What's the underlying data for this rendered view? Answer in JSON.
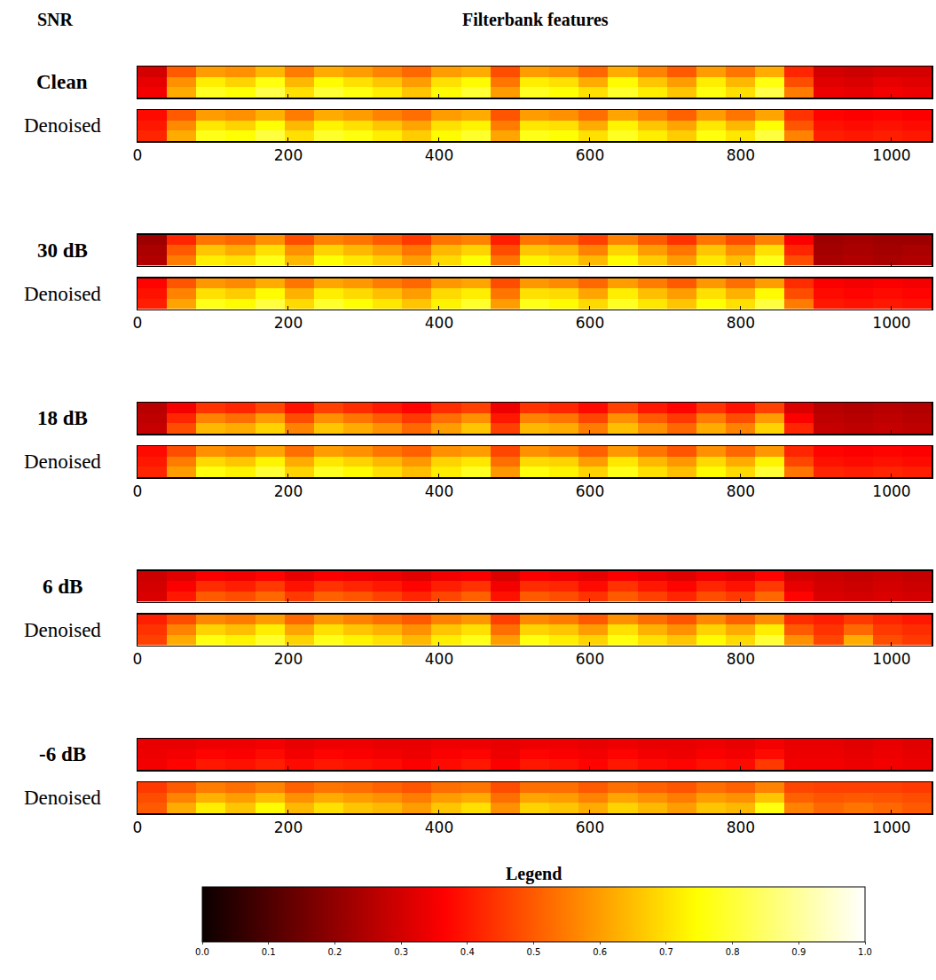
{
  "chart_data": {
    "type": "heatmap",
    "title": "Filterbank features",
    "row_label_title": "SNR",
    "tick_labels": "x",
    "x": [
      0,
      39,
      78,
      117,
      156,
      195,
      234,
      273,
      312,
      351,
      390,
      429,
      468,
      507,
      546,
      585,
      624,
      663,
      702,
      741,
      780,
      819,
      858,
      897,
      936,
      975,
      1014,
      1053
    ],
    "xlim": [
      0,
      1053
    ],
    "xticks": [
      0,
      200,
      400,
      600,
      800,
      1000
    ],
    "colorbar": {
      "title": "Legend",
      "range": [
        0,
        1
      ],
      "ticks": [
        {
          "value": 0,
          "label": "0.0"
        },
        {
          "value": 0.1,
          "label": "0.1"
        },
        {
          "value": 0.2,
          "label": "0.2"
        },
        {
          "value": 0.3,
          "label": "0.3"
        },
        {
          "value": 0.4,
          "label": "0.4"
        },
        {
          "value": 0.5,
          "label": "0.5"
        },
        {
          "value": 0.6,
          "label": "0.6"
        },
        {
          "value": 0.7,
          "label": "0.7"
        },
        {
          "value": 0.8,
          "label": "0.8"
        },
        {
          "value": 0.9,
          "label": "0.9"
        },
        {
          "value": 1,
          "label": "1.0"
        }
      ]
    },
    "panels": [
      {
        "label": "Clean",
        "cells": [
          [
            0.35,
            0.62,
            0.78,
            0.75,
            0.82,
            0.7,
            0.8,
            0.76,
            0.72,
            0.66,
            0.74,
            0.8,
            0.6,
            0.78,
            0.75,
            0.7,
            0.79,
            0.72,
            0.66,
            0.76,
            0.7,
            0.82,
            0.55,
            0.34,
            0.33,
            0.35,
            0.34
          ],
          [
            0.33,
            0.58,
            0.72,
            0.68,
            0.76,
            0.64,
            0.74,
            0.7,
            0.66,
            0.6,
            0.7,
            0.74,
            0.54,
            0.72,
            0.7,
            0.62,
            0.74,
            0.66,
            0.6,
            0.72,
            0.64,
            0.76,
            0.48,
            0.32,
            0.31,
            0.33,
            0.32
          ],
          [
            0.3,
            0.5,
            0.6,
            0.58,
            0.64,
            0.55,
            0.62,
            0.6,
            0.56,
            0.52,
            0.6,
            0.62,
            0.48,
            0.6,
            0.58,
            0.52,
            0.62,
            0.56,
            0.5,
            0.6,
            0.54,
            0.62,
            0.42,
            0.3,
            0.29,
            0.3,
            0.3
          ]
        ]
      },
      {
        "label": "Denoised",
        "cells": [
          [
            0.42,
            0.62,
            0.77,
            0.75,
            0.81,
            0.7,
            0.79,
            0.76,
            0.72,
            0.67,
            0.74,
            0.79,
            0.61,
            0.77,
            0.75,
            0.7,
            0.78,
            0.72,
            0.67,
            0.76,
            0.71,
            0.81,
            0.56,
            0.41,
            0.4,
            0.41,
            0.4
          ],
          [
            0.4,
            0.57,
            0.71,
            0.68,
            0.75,
            0.64,
            0.73,
            0.7,
            0.66,
            0.61,
            0.7,
            0.73,
            0.55,
            0.71,
            0.7,
            0.62,
            0.73,
            0.66,
            0.61,
            0.71,
            0.64,
            0.75,
            0.49,
            0.39,
            0.38,
            0.39,
            0.38
          ],
          [
            0.38,
            0.5,
            0.6,
            0.58,
            0.63,
            0.55,
            0.62,
            0.6,
            0.56,
            0.53,
            0.6,
            0.62,
            0.49,
            0.6,
            0.58,
            0.53,
            0.61,
            0.56,
            0.51,
            0.6,
            0.54,
            0.61,
            0.44,
            0.37,
            0.36,
            0.37,
            0.36
          ]
        ]
      },
      {
        "label": "30 dB",
        "cells": [
          [
            0.25,
            0.55,
            0.72,
            0.7,
            0.77,
            0.64,
            0.75,
            0.71,
            0.67,
            0.6,
            0.69,
            0.75,
            0.54,
            0.73,
            0.7,
            0.64,
            0.74,
            0.67,
            0.6,
            0.71,
            0.65,
            0.77,
            0.48,
            0.24,
            0.25,
            0.24,
            0.25
          ],
          [
            0.24,
            0.5,
            0.66,
            0.62,
            0.7,
            0.58,
            0.68,
            0.64,
            0.6,
            0.54,
            0.64,
            0.68,
            0.48,
            0.66,
            0.64,
            0.56,
            0.68,
            0.6,
            0.54,
            0.66,
            0.58,
            0.7,
            0.42,
            0.23,
            0.24,
            0.23,
            0.24
          ],
          [
            0.22,
            0.42,
            0.54,
            0.52,
            0.58,
            0.48,
            0.56,
            0.54,
            0.5,
            0.45,
            0.54,
            0.56,
            0.41,
            0.54,
            0.52,
            0.46,
            0.56,
            0.5,
            0.44,
            0.54,
            0.48,
            0.56,
            0.36,
            0.22,
            0.23,
            0.22,
            0.22
          ]
        ]
      },
      {
        "label": "Denoised",
        "cells": [
          [
            0.41,
            0.61,
            0.77,
            0.74,
            0.81,
            0.69,
            0.79,
            0.75,
            0.71,
            0.66,
            0.73,
            0.79,
            0.6,
            0.77,
            0.74,
            0.69,
            0.78,
            0.71,
            0.66,
            0.75,
            0.7,
            0.81,
            0.55,
            0.4,
            0.39,
            0.4,
            0.39
          ],
          [
            0.39,
            0.56,
            0.7,
            0.67,
            0.74,
            0.63,
            0.72,
            0.69,
            0.65,
            0.6,
            0.69,
            0.72,
            0.54,
            0.7,
            0.69,
            0.61,
            0.72,
            0.65,
            0.6,
            0.7,
            0.63,
            0.74,
            0.48,
            0.38,
            0.37,
            0.38,
            0.37
          ],
          [
            0.37,
            0.49,
            0.59,
            0.57,
            0.62,
            0.54,
            0.61,
            0.59,
            0.55,
            0.52,
            0.59,
            0.61,
            0.48,
            0.59,
            0.57,
            0.52,
            0.6,
            0.55,
            0.5,
            0.59,
            0.53,
            0.6,
            0.43,
            0.36,
            0.35,
            0.36,
            0.35
          ]
        ]
      },
      {
        "label": "18 dB",
        "cells": [
          [
            0.28,
            0.48,
            0.64,
            0.62,
            0.68,
            0.56,
            0.66,
            0.62,
            0.58,
            0.52,
            0.6,
            0.66,
            0.46,
            0.64,
            0.62,
            0.55,
            0.65,
            0.58,
            0.52,
            0.62,
            0.56,
            0.68,
            0.42,
            0.28,
            0.27,
            0.28,
            0.27
          ],
          [
            0.27,
            0.42,
            0.56,
            0.53,
            0.6,
            0.48,
            0.58,
            0.54,
            0.5,
            0.45,
            0.53,
            0.58,
            0.4,
            0.56,
            0.54,
            0.47,
            0.58,
            0.5,
            0.45,
            0.55,
            0.48,
            0.6,
            0.36,
            0.27,
            0.26,
            0.27,
            0.26
          ],
          [
            0.26,
            0.35,
            0.44,
            0.42,
            0.47,
            0.39,
            0.46,
            0.43,
            0.4,
            0.37,
            0.43,
            0.46,
            0.34,
            0.44,
            0.42,
            0.38,
            0.46,
            0.4,
            0.37,
            0.44,
            0.39,
            0.46,
            0.31,
            0.26,
            0.25,
            0.26,
            0.25
          ]
        ]
      },
      {
        "label": "Denoised",
        "cells": [
          [
            0.42,
            0.6,
            0.76,
            0.73,
            0.8,
            0.68,
            0.78,
            0.74,
            0.7,
            0.65,
            0.72,
            0.78,
            0.59,
            0.76,
            0.73,
            0.68,
            0.77,
            0.7,
            0.65,
            0.74,
            0.69,
            0.8,
            0.54,
            0.42,
            0.41,
            0.42,
            0.41
          ],
          [
            0.4,
            0.55,
            0.69,
            0.66,
            0.73,
            0.62,
            0.71,
            0.68,
            0.64,
            0.59,
            0.68,
            0.71,
            0.53,
            0.69,
            0.68,
            0.6,
            0.71,
            0.64,
            0.59,
            0.69,
            0.62,
            0.73,
            0.47,
            0.39,
            0.38,
            0.39,
            0.38
          ],
          [
            0.38,
            0.48,
            0.58,
            0.56,
            0.61,
            0.53,
            0.6,
            0.58,
            0.54,
            0.51,
            0.58,
            0.6,
            0.47,
            0.58,
            0.56,
            0.51,
            0.59,
            0.54,
            0.49,
            0.58,
            0.52,
            0.59,
            0.42,
            0.37,
            0.36,
            0.37,
            0.36
          ]
        ]
      },
      {
        "label": "6 dB",
        "cells": [
          [
            0.31,
            0.4,
            0.5,
            0.48,
            0.52,
            0.45,
            0.51,
            0.49,
            0.46,
            0.42,
            0.47,
            0.51,
            0.39,
            0.5,
            0.48,
            0.44,
            0.5,
            0.46,
            0.42,
            0.48,
            0.45,
            0.52,
            0.37,
            0.31,
            0.3,
            0.31,
            0.3
          ],
          [
            0.3,
            0.36,
            0.43,
            0.41,
            0.45,
            0.39,
            0.44,
            0.42,
            0.4,
            0.37,
            0.41,
            0.44,
            0.35,
            0.43,
            0.42,
            0.38,
            0.44,
            0.4,
            0.37,
            0.42,
            0.39,
            0.45,
            0.33,
            0.3,
            0.29,
            0.3,
            0.29
          ],
          [
            0.29,
            0.32,
            0.36,
            0.35,
            0.37,
            0.33,
            0.36,
            0.35,
            0.34,
            0.32,
            0.35,
            0.36,
            0.31,
            0.36,
            0.35,
            0.33,
            0.36,
            0.34,
            0.32,
            0.35,
            0.33,
            0.37,
            0.3,
            0.29,
            0.28,
            0.29,
            0.28
          ]
        ]
      },
      {
        "label": "Denoised",
        "cells": [
          [
            0.46,
            0.62,
            0.76,
            0.73,
            0.79,
            0.68,
            0.77,
            0.73,
            0.7,
            0.64,
            0.72,
            0.77,
            0.6,
            0.76,
            0.72,
            0.68,
            0.76,
            0.7,
            0.66,
            0.74,
            0.69,
            0.8,
            0.58,
            0.47,
            0.62,
            0.48,
            0.45
          ],
          [
            0.44,
            0.56,
            0.68,
            0.65,
            0.72,
            0.61,
            0.7,
            0.66,
            0.63,
            0.58,
            0.66,
            0.7,
            0.53,
            0.68,
            0.66,
            0.6,
            0.7,
            0.63,
            0.58,
            0.68,
            0.62,
            0.72,
            0.5,
            0.44,
            0.52,
            0.45,
            0.43
          ],
          [
            0.41,
            0.48,
            0.57,
            0.55,
            0.6,
            0.52,
            0.59,
            0.56,
            0.53,
            0.5,
            0.56,
            0.59,
            0.46,
            0.57,
            0.55,
            0.5,
            0.58,
            0.53,
            0.49,
            0.57,
            0.51,
            0.58,
            0.43,
            0.41,
            0.45,
            0.42,
            0.4
          ]
        ]
      },
      {
        "label": "-6 dB",
        "cells": [
          [
            0.35,
            0.37,
            0.4,
            0.39,
            0.41,
            0.38,
            0.4,
            0.39,
            0.38,
            0.36,
            0.38,
            0.4,
            0.36,
            0.4,
            0.39,
            0.37,
            0.4,
            0.38,
            0.37,
            0.39,
            0.38,
            0.45,
            0.35,
            0.35,
            0.34,
            0.35,
            0.34
          ],
          [
            0.34,
            0.35,
            0.37,
            0.36,
            0.38,
            0.35,
            0.37,
            0.36,
            0.35,
            0.34,
            0.36,
            0.37,
            0.34,
            0.37,
            0.36,
            0.35,
            0.37,
            0.35,
            0.34,
            0.36,
            0.35,
            0.38,
            0.34,
            0.34,
            0.33,
            0.34,
            0.33
          ],
          [
            0.33,
            0.33,
            0.34,
            0.34,
            0.35,
            0.33,
            0.34,
            0.34,
            0.33,
            0.33,
            0.34,
            0.34,
            0.33,
            0.34,
            0.34,
            0.33,
            0.34,
            0.33,
            0.33,
            0.34,
            0.33,
            0.35,
            0.33,
            0.33,
            0.32,
            0.33,
            0.32
          ]
        ]
      },
      {
        "label": "Denoised",
        "cells": [
          [
            0.5,
            0.62,
            0.72,
            0.66,
            0.74,
            0.64,
            0.7,
            0.66,
            0.64,
            0.6,
            0.66,
            0.7,
            0.58,
            0.68,
            0.66,
            0.62,
            0.68,
            0.64,
            0.6,
            0.66,
            0.64,
            0.76,
            0.56,
            0.52,
            0.54,
            0.52,
            0.5
          ],
          [
            0.48,
            0.56,
            0.63,
            0.6,
            0.65,
            0.58,
            0.62,
            0.6,
            0.58,
            0.55,
            0.6,
            0.62,
            0.53,
            0.61,
            0.6,
            0.56,
            0.61,
            0.58,
            0.55,
            0.6,
            0.58,
            0.66,
            0.51,
            0.49,
            0.5,
            0.49,
            0.48
          ],
          [
            0.45,
            0.5,
            0.55,
            0.53,
            0.56,
            0.51,
            0.54,
            0.53,
            0.51,
            0.49,
            0.53,
            0.54,
            0.48,
            0.53,
            0.53,
            0.5,
            0.53,
            0.51,
            0.49,
            0.53,
            0.51,
            0.56,
            0.47,
            0.46,
            0.46,
            0.46,
            0.45
          ]
        ]
      }
    ]
  }
}
